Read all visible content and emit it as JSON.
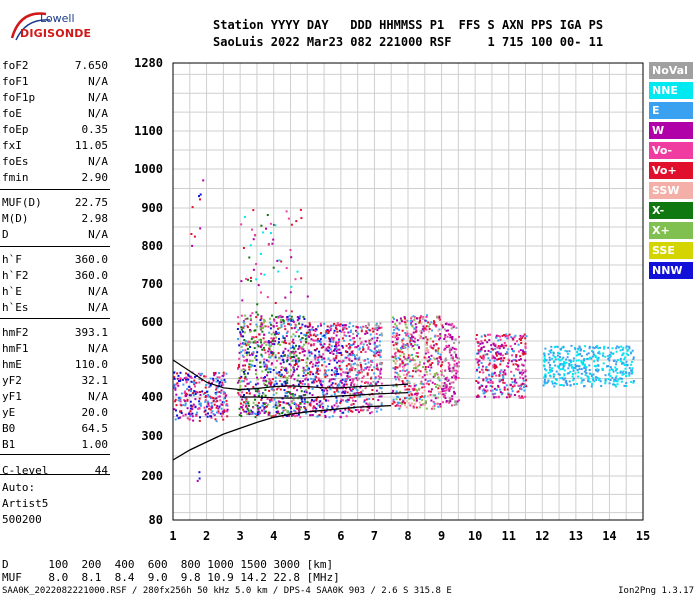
{
  "logo": {
    "line1": "Lowell",
    "line2": "DIGISONDE"
  },
  "header": {
    "row1": "Station YYYY DAY   DDD HHMMSS P1  FFS S AXN PPS IGA PS",
    "row2": "SaoLuis 2022 Mar23 082 221000 RSF     1 715 100 00- 11"
  },
  "params": [
    {
      "name": "foF2",
      "value": "7.650"
    },
    {
      "name": "foF1",
      "value": "N/A"
    },
    {
      "name": "foF1p",
      "value": "N/A"
    },
    {
      "name": "foE",
      "value": "N/A"
    },
    {
      "name": "foEp",
      "value": "0.35"
    },
    {
      "name": "fxI",
      "value": "11.05"
    },
    {
      "name": "foEs",
      "value": "N/A"
    },
    {
      "name": "fmin",
      "value": "2.90"
    },
    {
      "name": "MUF(D)",
      "value": "22.75"
    },
    {
      "name": "M(D)",
      "value": "2.98"
    },
    {
      "name": "D",
      "value": "N/A"
    },
    {
      "name": "h`F",
      "value": "360.0"
    },
    {
      "name": "h`F2",
      "value": "360.0"
    },
    {
      "name": "h`E",
      "value": "N/A"
    },
    {
      "name": "h`Es",
      "value": "N/A"
    },
    {
      "name": "hmF2",
      "value": "393.1"
    },
    {
      "name": "hmF1",
      "value": "N/A"
    },
    {
      "name": "hmE",
      "value": "110.0"
    },
    {
      "name": "yF2",
      "value": "32.1"
    },
    {
      "name": "yF1",
      "value": "N/A"
    },
    {
      "name": "yE",
      "value": "20.0"
    },
    {
      "name": "B0",
      "value": "64.5"
    },
    {
      "name": "B1",
      "value": "1.00"
    },
    {
      "name": "C-level",
      "value": "44"
    }
  ],
  "auto": {
    "line1": "Auto:",
    "line2": "Artist5",
    "line3": "500200"
  },
  "legend": [
    {
      "label": "NoVal",
      "color": "#a0a0a0",
      "text_color": "#ffffff"
    },
    {
      "label": "NNE",
      "color": "#00e8f0",
      "text_color": "#ffffff"
    },
    {
      "label": "E",
      "color": "#3aa0f0",
      "text_color": "#ffffff"
    },
    {
      "label": "W",
      "color": "#b000a8",
      "text_color": "#ffffff"
    },
    {
      "label": "Vo-",
      "color": "#f03ca0",
      "text_color": "#ffffff"
    },
    {
      "label": "Vo+",
      "color": "#e0102c",
      "text_color": "#ffffff"
    },
    {
      "label": "SSW",
      "color": "#f4b0a8",
      "text_color": "#ffffff"
    },
    {
      "label": "X-",
      "color": "#107810",
      "text_color": "#ffffff"
    },
    {
      "label": "X+",
      "color": "#80c050",
      "text_color": "#ffffff"
    },
    {
      "label": "SSE",
      "color": "#d4d400",
      "text_color": "#ffffff"
    },
    {
      "label": "NNW",
      "color": "#1010d8",
      "text_color": "#ffffff"
    }
  ],
  "footer": {
    "d_row": "D      100  200  400  600  800 1000 1500 3000 [km]",
    "muf_row": "MUF    8.0  8.1  8.4  9.0  9.8 10.9 14.2 22.8 [MHz]",
    "credit": "SAA0K_2022082221000.RSF / 280fx256h 50 kHz 5.0 km / DPS-4 SAA0K 903 / 2.6 S 315.8 E",
    "credit_right": "Ion2Png 1.3.17"
  },
  "chart_data": {
    "type": "scatter",
    "title": "",
    "xlabel": "",
    "ylabel": "",
    "xlim": [
      1,
      15
    ],
    "ylim": [
      80,
      1280
    ],
    "x_ticks": [
      "1",
      "2",
      "3",
      "4",
      "5",
      "6",
      "7",
      "8",
      "9",
      "10",
      "11",
      "12",
      "13",
      "14",
      "15"
    ],
    "y_ticks": [
      {
        "value": 80,
        "label": "80"
      },
      {
        "value": 200,
        "label": "200"
      },
      {
        "value": 300,
        "label": "300"
      },
      {
        "value": 400,
        "label": "400"
      },
      {
        "value": 500,
        "label": "500"
      },
      {
        "value": 600,
        "label": "600"
      },
      {
        "value": 700,
        "label": "700"
      },
      {
        "value": 800,
        "label": "800"
      },
      {
        "value": 900,
        "label": "900"
      },
      {
        "value": 1000,
        "label": "1000"
      },
      {
        "value": 1100,
        "label": "1100"
      },
      {
        "value": 1280,
        "label": "1280"
      }
    ],
    "grid": true,
    "y_scale": "nonlinear",
    "echo_clusters": [
      {
        "x": [
          1.0,
          2.6
        ],
        "y": [
          340,
          470
        ],
        "colors": [
          "#1010d8",
          "#b000a8",
          "#3aa0f0",
          "#f03ca0",
          "#e0102c"
        ]
      },
      {
        "x": [
          2.9,
          5.0
        ],
        "y": [
          350,
          620
        ],
        "colors": [
          "#b000a8",
          "#f03ca0",
          "#e0102c",
          "#1010d8",
          "#3aa0f0",
          "#107810",
          "#80c050"
        ]
      },
      {
        "x": [
          5.0,
          6.2
        ],
        "y": [
          350,
          600
        ],
        "colors": [
          "#b000a8",
          "#f03ca0",
          "#e0102c",
          "#1010d8",
          "#3aa0f0"
        ]
      },
      {
        "x": [
          6.2,
          7.2
        ],
        "y": [
          360,
          600
        ],
        "colors": [
          "#b000a8",
          "#f03ca0",
          "#e0102c",
          "#3aa0f0",
          "#a0a0a0"
        ]
      },
      {
        "x": [
          7.5,
          9.0
        ],
        "y": [
          370,
          620
        ],
        "colors": [
          "#f03ca0",
          "#e0102c",
          "#b000a8",
          "#3aa0f0",
          "#80c050",
          "#f4b0a8"
        ]
      },
      {
        "x": [
          9.0,
          9.5
        ],
        "y": [
          380,
          600
        ],
        "colors": [
          "#a0a0a0",
          "#f03ca0",
          "#b000a8"
        ]
      },
      {
        "x": [
          10.0,
          11.5
        ],
        "y": [
          400,
          570
        ],
        "colors": [
          "#b000a8",
          "#e0102c",
          "#f03ca0",
          "#3aa0f0"
        ]
      },
      {
        "x": [
          12.0,
          14.7
        ],
        "y": [
          430,
          540
        ],
        "colors": [
          "#00e8f0",
          "#3aa0f0"
        ]
      }
    ],
    "sparse_echoes": [
      {
        "x": [
          1.5,
          1.9
        ],
        "y": [
          800,
          1000
        ],
        "colors": [
          "#b000a8",
          "#e0102c",
          "#1010d8"
        ]
      },
      {
        "x": [
          1.5,
          1.9
        ],
        "y": [
          180,
          240
        ],
        "colors": [
          "#1010d8",
          "#b000a8"
        ]
      },
      {
        "x": [
          3.0,
          5.0
        ],
        "y": [
          620,
          900
        ],
        "colors": [
          "#b000a8",
          "#f03ca0",
          "#e0102c",
          "#107810",
          "#00e8f0"
        ]
      }
    ],
    "profile_curve": {
      "x": [
        1.0,
        1.5,
        2.0,
        2.5,
        3.0,
        3.5,
        4.0,
        4.5,
        5.0,
        5.5,
        6.0,
        6.5,
        7.0,
        7.5
      ],
      "y": [
        240,
        265,
        285,
        305,
        320,
        335,
        348,
        356,
        362,
        366,
        370,
        374,
        376,
        378
      ]
    },
    "trace_upper": {
      "x": [
        1.0,
        1.5,
        2.0,
        2.5,
        3.0,
        3.5,
        4.0,
        4.5,
        5.0,
        5.5,
        6.0,
        6.5,
        7.0,
        7.5,
        8.0
      ],
      "y": [
        500,
        470,
        440,
        425,
        420,
        423,
        428,
        430,
        428,
        425,
        425,
        428,
        430,
        432,
        435
      ]
    },
    "trace_lower": {
      "x": [
        3.0,
        3.5,
        4.0,
        4.5,
        5.0,
        5.5,
        6.0,
        6.5,
        7.0,
        7.5,
        8.0
      ],
      "y": [
        400,
        400,
        398,
        397,
        398,
        400,
        403,
        405,
        408,
        410,
        412
      ]
    }
  }
}
